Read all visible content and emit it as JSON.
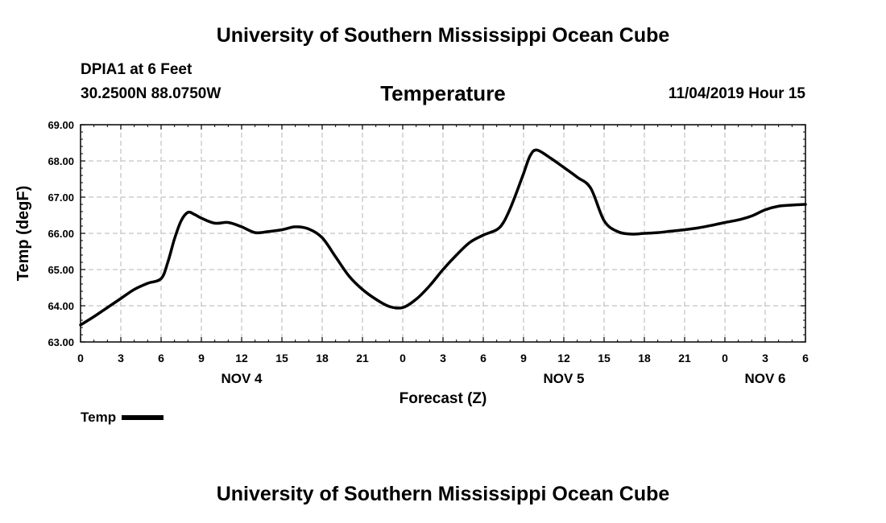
{
  "header": {
    "title": "University of Southern Mississippi Ocean Cube",
    "station": "DPIA1 at 6 Feet",
    "coordinates": "30.2500N 88.0750W",
    "run_time": "11/04/2019 Hour 15"
  },
  "footer": {
    "title": "University of Southern Mississippi Ocean Cube"
  },
  "legend": {
    "label": "Temp",
    "color": "#000000"
  },
  "chart_data": {
    "type": "line",
    "title": "Temperature",
    "xlabel": "Forecast (Z)",
    "ylabel": "Temp (degF)",
    "ylim": [
      63.0,
      69.0
    ],
    "yticks": [
      "63.00",
      "64.00",
      "65.00",
      "66.00",
      "67.00",
      "68.00",
      "69.00"
    ],
    "xlim": [
      0,
      54
    ],
    "x_unit": "hours since NOV 4 00Z",
    "xtick_labels": [
      "0",
      "3",
      "6",
      "9",
      "12",
      "15",
      "18",
      "21",
      "0",
      "3",
      "6",
      "9",
      "12",
      "15",
      "18",
      "21",
      "0",
      "3",
      "6"
    ],
    "day_labels": [
      {
        "label": "NOV 4",
        "hour": 12
      },
      {
        "label": "NOV 5",
        "hour": 36
      },
      {
        "label": "NOV 6",
        "hour": 51
      }
    ],
    "grid": true,
    "series": [
      {
        "name": "Temp",
        "color": "#000000",
        "x": [
          0,
          1,
          2,
          3,
          4,
          5,
          6,
          6.5,
          7,
          7.5,
          8,
          8.5,
          9,
          10,
          11,
          12,
          13,
          14,
          15,
          16,
          17,
          18,
          19,
          20,
          21,
          22,
          23,
          24,
          25,
          26,
          27,
          28,
          29,
          30,
          31,
          31.5,
          32,
          32.5,
          33,
          33.5,
          34,
          35,
          36,
          37,
          38,
          39,
          40,
          41,
          42,
          43,
          44,
          45,
          46,
          47,
          48,
          49,
          50,
          51,
          52,
          53,
          54
        ],
        "y": [
          63.47,
          63.7,
          63.95,
          64.2,
          64.45,
          64.62,
          64.75,
          65.2,
          65.85,
          66.35,
          66.58,
          66.52,
          66.42,
          66.28,
          66.3,
          66.18,
          66.02,
          66.05,
          66.1,
          66.18,
          66.12,
          65.88,
          65.35,
          64.82,
          64.45,
          64.18,
          63.98,
          63.95,
          64.18,
          64.55,
          65.0,
          65.4,
          65.75,
          65.95,
          66.1,
          66.3,
          66.68,
          67.15,
          67.65,
          68.15,
          68.3,
          68.08,
          67.82,
          67.55,
          67.25,
          66.35,
          66.05,
          65.98,
          66.0,
          66.02,
          66.06,
          66.1,
          66.15,
          66.22,
          66.3,
          66.37,
          66.48,
          66.65,
          66.75,
          66.78,
          66.8
        ]
      }
    ]
  }
}
